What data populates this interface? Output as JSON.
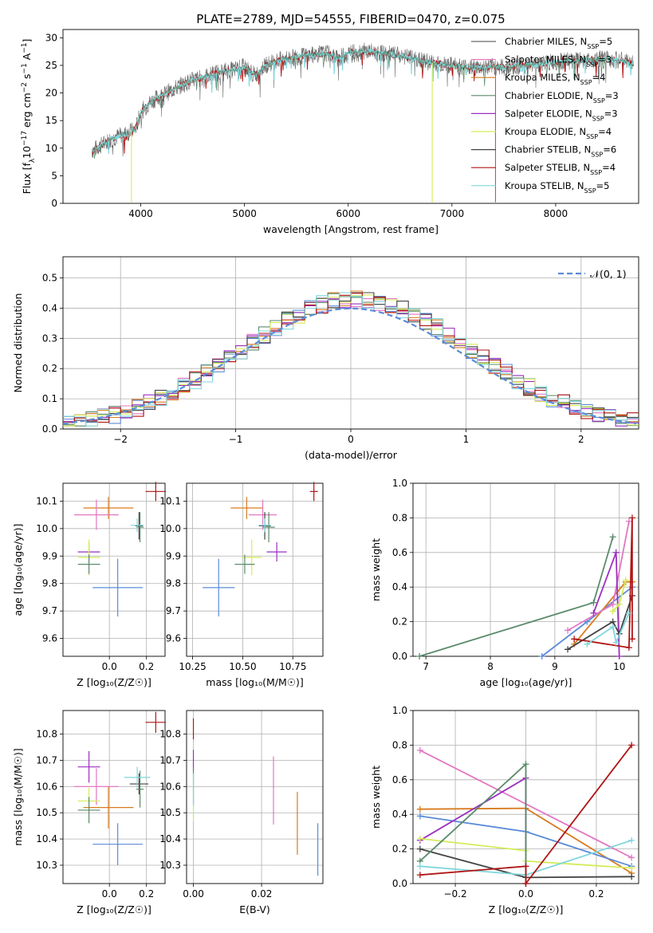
{
  "figure_title": "PLATE=2789, MJD=54555, FIBERID=0470, z=0.075",
  "palette": {
    "chabrier_miles": "#6a6a6a",
    "salpeter_miles": "#e377c2",
    "kroupa_miles": "#d97b1f",
    "chabrier_elodie": "#5a8a6a",
    "salpeter_elodie": "#9b2fbf",
    "kroupa_elodie": "#d4ec5a",
    "chabrier_stelib": "#444444",
    "salpeter_stelib": "#b01515",
    "kroupa_stelib": "#7fd6dc",
    "normal_curve": "#5b8bd8",
    "blue_model": "#5b8bd8"
  },
  "chart_data": [
    {
      "id": "spectrum",
      "type": "line",
      "xlabel": "wavelength [Angstrom, rest frame]",
      "ylabel_parts": [
        "Flux [f",
        "λ",
        "10",
        "−17",
        " erg cm",
        "−2",
        " s",
        "−1",
        " A",
        "−1",
        "]"
      ],
      "xlim": [
        3250,
        8800
      ],
      "ylim": [
        0,
        31.5
      ],
      "xticks": [
        4000,
        5000,
        6000,
        7000,
        8000
      ],
      "yticks": [
        0,
        5,
        10,
        15,
        20,
        25,
        30
      ],
      "grid": false,
      "legend_position": "upper-right",
      "legend": [
        {
          "name": "Chabrier MILES",
          "nssp": 5,
          "color": "#6a6a6a"
        },
        {
          "name": "Salpeter MILES",
          "nssp": 3,
          "color": "#e377c2"
        },
        {
          "name": "Kroupa MILES",
          "nssp": 4,
          "color": "#d97b1f"
        },
        {
          "name": "Chabrier ELODIE",
          "nssp": 3,
          "color": "#5a8a6a"
        },
        {
          "name": "Salpeter ELODIE",
          "nssp": 3,
          "color": "#9b2fbf"
        },
        {
          "name": "Kroupa ELODIE",
          "nssp": 4,
          "color": "#d4ec5a"
        },
        {
          "name": "Chabrier STELIB",
          "nssp": 6,
          "color": "#444444"
        },
        {
          "name": "Salpeter STELIB",
          "nssp": 4,
          "color": "#b01515"
        },
        {
          "name": "Kroupa STELIB",
          "nssp": 5,
          "color": "#7fd6dc"
        }
      ],
      "spectrum_envelope": {
        "x": [
          3530,
          3700,
          3800,
          3880,
          3950,
          4000,
          4100,
          4200,
          4300,
          4400,
          4500,
          4600,
          4700,
          4800,
          4900,
          5000,
          5100,
          5200,
          5300,
          5400,
          5500,
          5600,
          5700,
          5800,
          5900,
          6000,
          6100,
          6200,
          6300,
          6400,
          6500,
          6600,
          6700,
          6800,
          6900,
          7000,
          7100,
          7200,
          7300,
          7400,
          7500,
          7600,
          7700,
          7800,
          7900,
          8000,
          8100,
          8200,
          8300,
          8400,
          8500,
          8600,
          8700,
          8750
        ],
        "y": [
          9.5,
          11.5,
          12.3,
          12.8,
          13.5,
          16.5,
          18.5,
          19.5,
          20.5,
          21.5,
          22.3,
          22.8,
          23.5,
          24.0,
          24.2,
          24.8,
          23.2,
          25.0,
          25.8,
          26.2,
          26.5,
          26.8,
          27.0,
          27.2,
          26.2,
          27.2,
          27.6,
          27.5,
          27.3,
          27.0,
          26.8,
          26.3,
          25.9,
          25.5,
          25.2,
          25.0,
          24.8,
          24.6,
          24.6,
          24.8,
          24.6,
          24.8,
          25.0,
          25.2,
          25.4,
          25.6,
          25.8,
          25.8,
          26.0,
          26.1,
          26.2,
          26.0,
          25.5,
          25.2
        ]
      },
      "spikes": [
        {
          "x": 3910,
          "from": 13.2,
          "to": 0.2,
          "color": "#d4ec5a"
        },
        {
          "x": 6810,
          "from": 25.5,
          "to": 0.2,
          "color": "#d4ec5a"
        },
        {
          "x": 7420,
          "from": 24.6,
          "to": 0.2,
          "color": "#e8472f"
        }
      ]
    },
    {
      "id": "residuals",
      "type": "histogram",
      "xlabel": "(data-model)/error",
      "ylabel": "Normed distribution",
      "xlim": [
        -2.5,
        2.5
      ],
      "ylim": [
        0,
        0.57
      ],
      "xticks": [
        -2,
        -1,
        0,
        1,
        2
      ],
      "yticks": [
        0.0,
        0.1,
        0.2,
        0.3,
        0.4,
        0.5
      ],
      "grid": true,
      "legend_position": "upper-right",
      "legend_label": "𝒩(0, 1)",
      "bin_width": 0.1,
      "bin_start": -2.5
    },
    {
      "id": "age_vs_Z",
      "type": "errorbar",
      "xlabel": "Z [log₁₀(Z/Z☉)]",
      "ylabel": "age  [log₁₀(age/yr)]",
      "xlim": [
        -0.25,
        0.3
      ],
      "ylim": [
        9.535,
        10.165
      ],
      "xticks": [
        0.0,
        0.2
      ],
      "yticks": [
        9.6,
        9.7,
        9.8,
        9.9,
        10.0,
        10.1
      ],
      "grid": true,
      "points": [
        {
          "x": 0.045,
          "xerr": 0.135,
          "y": 9.785,
          "yerr": 0.105,
          "color": "#5b8bd8"
        },
        {
          "x": -0.005,
          "xerr": 0.135,
          "y": 10.075,
          "yerr": 0.04,
          "color": "#d97b1f"
        },
        {
          "x": -0.07,
          "xerr": 0.12,
          "y": 10.05,
          "yerr": 0.055,
          "color": "#e377c2"
        },
        {
          "x": -0.11,
          "xerr": 0.06,
          "y": 9.915,
          "yerr": 0.035,
          "color": "#9b2fbf"
        },
        {
          "x": -0.11,
          "xerr": 0.06,
          "y": 9.895,
          "yerr": 0.065,
          "color": "#d4ec5a"
        },
        {
          "x": -0.11,
          "xerr": 0.06,
          "y": 9.87,
          "yerr": 0.035,
          "color": "#5a8a6a"
        },
        {
          "x": 0.16,
          "xerr": 0.02,
          "y": 10.01,
          "yerr": 0.05,
          "color": "#444444"
        },
        {
          "x": 0.165,
          "xerr": 0.02,
          "y": 10.005,
          "yerr": 0.055,
          "color": "#5a8a6a"
        },
        {
          "x": 0.15,
          "xerr": 0.035,
          "y": 10.012,
          "yerr": 0.025,
          "color": "#7fd6dc"
        },
        {
          "x": 0.25,
          "xerr": 0.055,
          "y": 10.135,
          "yerr": 0.035,
          "color": "#b01515"
        }
      ]
    },
    {
      "id": "age_vs_mass",
      "type": "errorbar",
      "xlabel": "mass [log₁₀(M/M☉)]",
      "ylabel": "",
      "xlim": [
        10.22,
        10.9
      ],
      "ylim": [
        9.535,
        10.165
      ],
      "xticks": [
        10.25,
        10.5,
        10.75
      ],
      "yticks": [
        9.6,
        9.7,
        9.8,
        9.9,
        10.0,
        10.1
      ],
      "grid": true,
      "points": [
        {
          "x": 10.38,
          "xerr": 0.08,
          "y": 9.785,
          "yerr": 0.105,
          "color": "#5b8bd8"
        },
        {
          "x": 10.52,
          "xerr": 0.08,
          "y": 10.075,
          "yerr": 0.04,
          "color": "#d97b1f"
        },
        {
          "x": 10.6,
          "xerr": 0.07,
          "y": 10.05,
          "yerr": 0.055,
          "color": "#e377c2"
        },
        {
          "x": 10.67,
          "xerr": 0.05,
          "y": 9.915,
          "yerr": 0.035,
          "color": "#9b2fbf"
        },
        {
          "x": 10.545,
          "xerr": 0.05,
          "y": 9.895,
          "yerr": 0.065,
          "color": "#d4ec5a"
        },
        {
          "x": 10.51,
          "xerr": 0.05,
          "y": 9.87,
          "yerr": 0.035,
          "color": "#5a8a6a"
        },
        {
          "x": 10.61,
          "xerr": 0.03,
          "y": 10.01,
          "yerr": 0.05,
          "color": "#444444"
        },
        {
          "x": 10.63,
          "xerr": 0.03,
          "y": 10.005,
          "yerr": 0.055,
          "color": "#5a8a6a"
        },
        {
          "x": 10.61,
          "xerr": 0.03,
          "y": 10.012,
          "yerr": 0.025,
          "color": "#7fd6dc"
        },
        {
          "x": 10.855,
          "xerr": 0.02,
          "y": 10.135,
          "yerr": 0.035,
          "color": "#b01515"
        }
      ]
    },
    {
      "id": "massweight_vs_age",
      "type": "line",
      "xlabel": "age  [log₁₀(age/yr)]",
      "ylabel": "mass weight",
      "xlim": [
        6.8,
        10.3
      ],
      "ylim": [
        0,
        1
      ],
      "xticks": [
        7,
        8,
        9,
        10
      ],
      "yticks": [
        0.0,
        0.2,
        0.4,
        0.6,
        0.8,
        1.0
      ],
      "grid": true,
      "series": [
        {
          "color": "#5a8a6a",
          "x": [
            6.9,
            9.6,
            9.9
          ],
          "y": [
            0.0,
            0.31,
            0.69
          ]
        },
        {
          "color": "#5b8bd8",
          "x": [
            8.8,
            9.5,
            10.2
          ],
          "y": [
            0.0,
            0.2,
            0.4
          ]
        },
        {
          "color": "#d97b1f",
          "x": [
            9.3,
            10.1,
            10.2
          ],
          "y": [
            0.07,
            0.43,
            0.43
          ]
        },
        {
          "color": "#e377c2",
          "x": [
            9.2,
            9.9,
            10.15
          ],
          "y": [
            0.15,
            0.3,
            0.78
          ]
        },
        {
          "color": "#9b2fbf",
          "x": [
            9.6,
            9.95,
            10.0
          ],
          "y": [
            0.25,
            0.6,
            0.0
          ]
        },
        {
          "color": "#d4ec5a",
          "x": [
            9.9,
            10.0,
            10.1
          ],
          "y": [
            0.26,
            0.3,
            0.44
          ]
        },
        {
          "color": "#444444",
          "x": [
            9.2,
            9.9,
            10.0,
            10.2
          ],
          "y": [
            0.04,
            0.2,
            0.13,
            0.35
          ]
        },
        {
          "color": "#b01515",
          "x": [
            9.3,
            10.15,
            10.2,
            10.2
          ],
          "y": [
            0.1,
            0.05,
            0.8,
            0.1
          ]
        },
        {
          "color": "#7fd6dc",
          "x": [
            9.5,
            9.9,
            9.95,
            10.15
          ],
          "y": [
            0.07,
            0.17,
            0.08,
            0.25
          ]
        }
      ]
    },
    {
      "id": "mass_vs_Z",
      "type": "errorbar",
      "xlabel": "Z [log₁₀(Z/Z☉)]",
      "ylabel": "mass [log₁₀(M/M☉)]",
      "xlim": [
        -0.25,
        0.3
      ],
      "ylim": [
        10.23,
        10.89
      ],
      "xticks": [
        0.0,
        0.2
      ],
      "yticks": [
        10.3,
        10.4,
        10.5,
        10.6,
        10.7,
        10.8
      ],
      "grid": true,
      "points": [
        {
          "x": 0.045,
          "xerr": 0.135,
          "y": 10.38,
          "yerr": 0.08,
          "color": "#5b8bd8"
        },
        {
          "x": -0.005,
          "xerr": 0.135,
          "y": 10.52,
          "yerr": 0.08,
          "color": "#d97b1f"
        },
        {
          "x": -0.07,
          "xerr": 0.12,
          "y": 10.6,
          "yerr": 0.07,
          "color": "#e377c2"
        },
        {
          "x": -0.11,
          "xerr": 0.06,
          "y": 10.675,
          "yerr": 0.06,
          "color": "#9b2fbf"
        },
        {
          "x": -0.11,
          "xerr": 0.06,
          "y": 10.545,
          "yerr": 0.05,
          "color": "#d4ec5a"
        },
        {
          "x": -0.11,
          "xerr": 0.06,
          "y": 10.51,
          "yerr": 0.05,
          "color": "#5a8a6a"
        },
        {
          "x": 0.16,
          "xerr": 0.05,
          "y": 10.61,
          "yerr": 0.04,
          "color": "#444444"
        },
        {
          "x": 0.165,
          "xerr": 0.02,
          "y": 10.59,
          "yerr": 0.07,
          "color": "#5a8a6a"
        },
        {
          "x": 0.15,
          "xerr": 0.07,
          "y": 10.635,
          "yerr": 0.04,
          "color": "#7fd6dc"
        },
        {
          "x": 0.25,
          "xerr": 0.055,
          "y": 10.845,
          "yerr": 0.04,
          "color": "#b01515"
        }
      ]
    },
    {
      "id": "mass_vs_ebv",
      "type": "errorbar",
      "xlabel": "E(B-V)",
      "ylabel": "",
      "xlim": [
        -0.002,
        0.038
      ],
      "ylim": [
        10.23,
        10.89
      ],
      "xticks": [
        0.0,
        0.02
      ],
      "yticks": [
        10.3,
        10.4,
        10.5,
        10.6,
        10.7,
        10.8
      ],
      "grid": true,
      "points": [
        {
          "x": 0.0,
          "xerr": 0,
          "y": 10.82,
          "yerr": 0.04,
          "color": "#b01515"
        },
        {
          "x": 0.0,
          "xerr": 0,
          "y": 10.7,
          "yerr": 0.04,
          "color": "#9b2fbf"
        },
        {
          "x": 0.0,
          "xerr": 0,
          "y": 10.6,
          "yerr": 0.07,
          "color": "#5a8a6a"
        },
        {
          "x": 0.0,
          "xerr": 0,
          "y": 10.565,
          "yerr": 0.085,
          "color": "#7fd6dc"
        },
        {
          "x": 0.0,
          "xerr": 0,
          "y": 10.5,
          "yerr": 0.03,
          "color": "#d4ec5a"
        },
        {
          "x": 0.0235,
          "xerr": 0,
          "y": 10.585,
          "yerr": 0.13,
          "color": "#e377c2"
        },
        {
          "x": 0.0305,
          "xerr": 0,
          "y": 10.46,
          "yerr": 0.12,
          "color": "#d97b1f"
        },
        {
          "x": 0.0365,
          "xerr": 0,
          "y": 10.36,
          "yerr": 0.1,
          "color": "#5b8bd8"
        }
      ]
    },
    {
      "id": "massweight_vs_Z",
      "type": "line",
      "xlabel": "Z [log₁₀(Z/Z☉)]",
      "ylabel": "mass weight",
      "xlim": [
        -0.32,
        0.32
      ],
      "ylim": [
        0,
        1
      ],
      "xticks": [
        -0.2,
        0.0,
        0.2
      ],
      "yticks": [
        0.0,
        0.2,
        0.4,
        0.6,
        0.8,
        1.0
      ],
      "grid": true,
      "series": [
        {
          "color": "#e377c2",
          "x": [
            -0.3,
            0.3
          ],
          "y": [
            0.77,
            0.15
          ]
        },
        {
          "color": "#d97b1f",
          "x": [
            -0.3,
            0.0,
            0.3
          ],
          "y": [
            0.43,
            0.435,
            0.06
          ]
        },
        {
          "color": "#5b8bd8",
          "x": [
            -0.3,
            0.0,
            0.3
          ],
          "y": [
            0.39,
            0.3,
            0.1
          ]
        },
        {
          "color": "#9b2fbf",
          "x": [
            -0.3,
            0.0,
            0.0
          ],
          "y": [
            0.25,
            0.61,
            0.0
          ]
        },
        {
          "color": "#d4ec5a",
          "x": [
            -0.3,
            0.0,
            0.0,
            0.3
          ],
          "y": [
            0.26,
            0.19,
            0.13,
            0.09
          ]
        },
        {
          "color": "#444444",
          "x": [
            -0.3,
            0.0,
            0.3
          ],
          "y": [
            0.2,
            0.035,
            0.04
          ]
        },
        {
          "color": "#5a8a6a",
          "x": [
            -0.3,
            0.0,
            0.0
          ],
          "y": [
            0.13,
            0.69,
            0.0
          ]
        },
        {
          "color": "#7fd6dc",
          "x": [
            -0.3,
            0.0,
            0.3
          ],
          "y": [
            0.1,
            0.05,
            0.25
          ]
        },
        {
          "color": "#b01515",
          "x": [
            -0.3,
            0.0,
            0.0,
            0.3
          ],
          "y": [
            0.05,
            0.1,
            0.0,
            0.8
          ]
        }
      ]
    }
  ]
}
